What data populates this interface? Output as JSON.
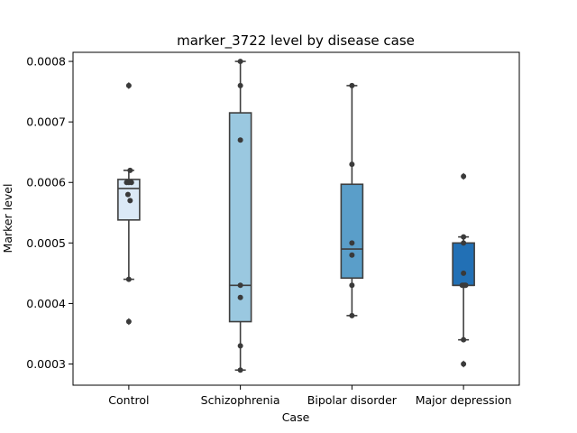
{
  "chart_data": {
    "type": "boxplot",
    "title": "marker_3722 level by disease case",
    "xlabel": "Case",
    "ylabel": "Marker level",
    "categories": [
      "Control",
      "Schizophrenia",
      "Bipolar disorder",
      "Major depression"
    ],
    "ylim": [
      0.000265,
      0.000815
    ],
    "yticks": [
      0.0003,
      0.0004,
      0.0005,
      0.0006,
      0.0007,
      0.0008
    ],
    "ytick_labels": [
      "0.0003",
      "0.0004",
      "0.0005",
      "0.0006",
      "0.0007",
      "0.0008"
    ],
    "grid": false,
    "boxes": [
      {
        "category": "Control",
        "color": "#dbe9f6",
        "q1": 0.000538,
        "median": 0.00059,
        "q3": 0.000605,
        "whisker_low": 0.00044,
        "whisker_high": 0.00062,
        "outliers": [
          0.00076,
          0.00037
        ]
      },
      {
        "category": "Schizophrenia",
        "color": "#9ac8e0",
        "q1": 0.00037,
        "median": 0.00043,
        "q3": 0.000715,
        "whisker_low": 0.00029,
        "whisker_high": 0.0008,
        "outliers": []
      },
      {
        "category": "Bipolar disorder",
        "color": "#5a9ec9",
        "q1": 0.000442,
        "median": 0.00049,
        "q3": 0.000597,
        "whisker_low": 0.00038,
        "whisker_high": 0.00076,
        "outliers": []
      },
      {
        "category": "Major depression",
        "color": "#2270b5",
        "q1": 0.00043,
        "median": 0.00043,
        "q3": 0.0005,
        "whisker_low": 0.00034,
        "whisker_high": 0.00051,
        "outliers": [
          0.00061,
          0.0003
        ]
      }
    ],
    "points": [
      {
        "category": "Control",
        "values": [
          0.00076,
          0.00062,
          0.0006,
          0.0006,
          0.0006,
          0.00058,
          0.00057,
          0.00044,
          0.00037
        ],
        "jitter": [
          0,
          0.06,
          -0.1,
          0.0,
          0.12,
          -0.04,
          0.06,
          0,
          0
        ]
      },
      {
        "category": "Schizophrenia",
        "values": [
          0.0008,
          0.00076,
          0.00067,
          0.00043,
          0.00041,
          0.00033,
          0.00029
        ],
        "jitter": [
          0,
          0,
          0,
          0,
          0,
          0,
          0
        ]
      },
      {
        "category": "Bipolar disorder",
        "values": [
          0.00076,
          0.00063,
          0.0005,
          0.00048,
          0.00043,
          0.00038
        ],
        "jitter": [
          0,
          0,
          0,
          0,
          0,
          0
        ]
      },
      {
        "category": "Major depression",
        "values": [
          0.00061,
          0.00051,
          0.0005,
          0.00045,
          0.00043,
          0.00043,
          0.00043,
          0.00043,
          0.00034,
          0.0003
        ],
        "jitter": [
          0,
          0,
          0,
          0,
          -0.06,
          0.0,
          0.06,
          0.1,
          0,
          0
        ]
      }
    ]
  }
}
